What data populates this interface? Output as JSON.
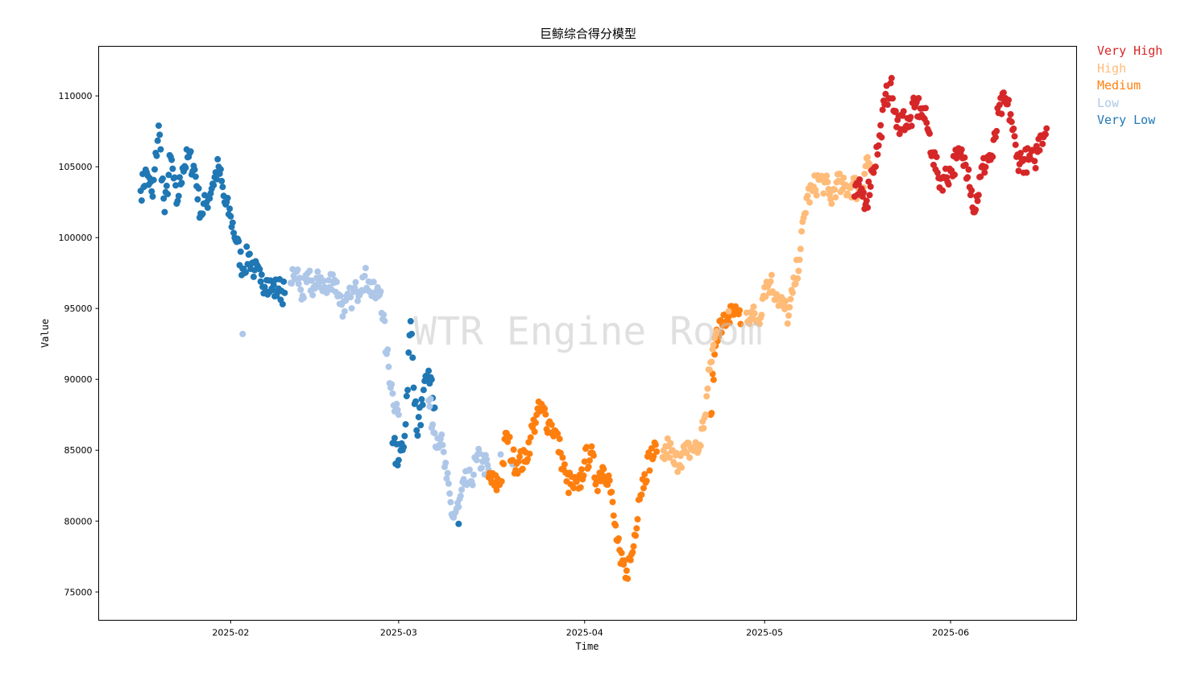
{
  "chart_data": {
    "type": "scatter",
    "title": "巨鲸综合得分模型",
    "xlabel": "Time",
    "ylabel": "Value",
    "watermark": "WTR Engine Room",
    "xlim": [
      "2025-01-10",
      "2025-06-22"
    ],
    "ylim": [
      73000,
      113500
    ],
    "x_ticks": [
      "2025-02",
      "2025-03",
      "2025-04",
      "2025-05",
      "2025-06"
    ],
    "y_ticks": [
      75000,
      80000,
      85000,
      90000,
      95000,
      100000,
      105000,
      110000
    ],
    "grid": false,
    "legend_position": "outside-top-right",
    "legend": [
      {
        "name": "Very High",
        "color": "#d62728"
      },
      {
        "name": "High",
        "color": "#ffbb78"
      },
      {
        "name": "Medium",
        "color": "#ff7f0e"
      },
      {
        "name": "Low",
        "color": "#aec7e8"
      },
      {
        "name": "Very Low",
        "color": "#1f77b4"
      }
    ],
    "series": [
      {
        "category": "Very Low",
        "color": "#1f77b4",
        "points": [
          [
            "2025-01-17",
            103300
          ],
          [
            "2025-01-18",
            104600
          ],
          [
            "2025-01-19",
            102900
          ],
          [
            "2025-01-20",
            107900
          ],
          [
            "2025-01-21",
            101800
          ],
          [
            "2025-01-22",
            105700
          ],
          [
            "2025-01-23",
            102400
          ],
          [
            "2025-01-24",
            104900
          ],
          [
            "2025-01-25",
            105700
          ],
          [
            "2025-01-26",
            104800
          ],
          [
            "2025-01-27",
            101700
          ],
          [
            "2025-01-28",
            102500
          ],
          [
            "2025-01-29",
            103800
          ],
          [
            "2025-01-30",
            105000
          ],
          [
            "2025-01-31",
            102500
          ],
          [
            "2025-02-01",
            101500
          ],
          [
            "2025-02-02",
            99700
          ],
          [
            "2025-02-03",
            97800
          ],
          [
            "2025-02-04",
            98800
          ],
          [
            "2025-02-05",
            97700
          ],
          [
            "2025-02-06",
            96900
          ],
          [
            "2025-02-07",
            97000
          ],
          [
            "2025-02-08",
            96300
          ],
          [
            "2025-02-09",
            96400
          ],
          [
            "2025-02-10",
            96100
          ],
          [
            "2025-02-28",
            85500
          ],
          [
            "2025-03-01",
            84300
          ],
          [
            "2025-03-02",
            86000
          ],
          [
            "2025-03-03",
            94100
          ],
          [
            "2025-03-04",
            86400
          ],
          [
            "2025-03-05",
            88200
          ],
          [
            "2025-03-06",
            90600
          ],
          [
            "2025-03-07",
            88000
          ],
          [
            "2025-03-11",
            79800
          ]
        ]
      },
      {
        "category": "Low",
        "color": "#aec7e8",
        "points": [
          [
            "2025-02-03",
            93200
          ],
          [
            "2025-02-11",
            96800
          ],
          [
            "2025-02-12",
            97600
          ],
          [
            "2025-02-13",
            95900
          ],
          [
            "2025-02-14",
            97000
          ],
          [
            "2025-02-15",
            96400
          ],
          [
            "2025-02-16",
            97200
          ],
          [
            "2025-02-17",
            96100
          ],
          [
            "2025-02-18",
            97400
          ],
          [
            "2025-02-19",
            96000
          ],
          [
            "2025-02-20",
            94800
          ],
          [
            "2025-02-21",
            95800
          ],
          [
            "2025-02-22",
            96200
          ],
          [
            "2025-02-23",
            97200
          ],
          [
            "2025-02-24",
            96900
          ],
          [
            "2025-02-25",
            95800
          ],
          [
            "2025-02-26",
            96200
          ],
          [
            "2025-02-27",
            91800
          ],
          [
            "2025-02-28",
            89000
          ],
          [
            "2025-03-01",
            87500
          ],
          [
            "2025-03-06",
            88500
          ],
          [
            "2025-03-07",
            86200
          ],
          [
            "2025-03-08",
            85800
          ],
          [
            "2025-03-09",
            83000
          ],
          [
            "2025-03-10",
            80300
          ],
          [
            "2025-03-11",
            81000
          ],
          [
            "2025-03-12",
            82600
          ],
          [
            "2025-03-13",
            82800
          ],
          [
            "2025-03-14",
            84300
          ],
          [
            "2025-03-15",
            84200
          ],
          [
            "2025-03-16",
            83600
          ],
          [
            "2025-03-18",
            84700
          ],
          [
            "2025-03-20",
            84000
          ]
        ]
      },
      {
        "category": "Medium",
        "color": "#ff7f0e",
        "points": [
          [
            "2025-03-16",
            83100
          ],
          [
            "2025-03-17",
            82500
          ],
          [
            "2025-03-18",
            82800
          ],
          [
            "2025-03-19",
            86200
          ],
          [
            "2025-03-20",
            84300
          ],
          [
            "2025-03-21",
            84200
          ],
          [
            "2025-03-22",
            84200
          ],
          [
            "2025-03-23",
            85900
          ],
          [
            "2025-03-24",
            87500
          ],
          [
            "2025-03-25",
            87800
          ],
          [
            "2025-03-26",
            86900
          ],
          [
            "2025-03-27",
            86400
          ],
          [
            "2025-03-28",
            84800
          ],
          [
            "2025-03-29",
            82800
          ],
          [
            "2025-03-30",
            82500
          ],
          [
            "2025-03-31",
            82300
          ],
          [
            "2025-04-01",
            84200
          ],
          [
            "2025-04-02",
            84800
          ],
          [
            "2025-04-03",
            82800
          ],
          [
            "2025-04-04",
            83800
          ],
          [
            "2025-04-05",
            83200
          ],
          [
            "2025-04-06",
            79800
          ],
          [
            "2025-04-07",
            77000
          ],
          [
            "2025-04-08",
            76500
          ],
          [
            "2025-04-09",
            77800
          ],
          [
            "2025-04-10",
            81500
          ],
          [
            "2025-04-11",
            83300
          ],
          [
            "2025-04-12",
            84600
          ],
          [
            "2025-04-13",
            84900
          ],
          [
            "2025-04-22",
            87500
          ],
          [
            "2025-04-23",
            93500
          ],
          [
            "2025-04-24",
            93800
          ],
          [
            "2025-04-25",
            94400
          ],
          [
            "2025-04-26",
            94600
          ],
          [
            "2025-04-27",
            93900
          ]
        ]
      },
      {
        "category": "High",
        "color": "#ffbb78",
        "points": [
          [
            "2025-04-14",
            84500
          ],
          [
            "2025-04-15",
            85300
          ],
          [
            "2025-04-16",
            84000
          ],
          [
            "2025-04-17",
            84600
          ],
          [
            "2025-04-18",
            84800
          ],
          [
            "2025-04-19",
            85200
          ],
          [
            "2025-04-20",
            85000
          ],
          [
            "2025-04-21",
            87300
          ],
          [
            "2025-04-22",
            91200
          ],
          [
            "2025-04-23",
            93400
          ],
          [
            "2025-04-25",
            94800
          ],
          [
            "2025-04-28",
            94700
          ],
          [
            "2025-04-29",
            94500
          ],
          [
            "2025-04-30",
            94200
          ],
          [
            "2025-05-01",
            96500
          ],
          [
            "2025-05-02",
            96900
          ],
          [
            "2025-05-03",
            96000
          ],
          [
            "2025-05-04",
            95200
          ],
          [
            "2025-05-05",
            94500
          ],
          [
            "2025-05-06",
            96700
          ],
          [
            "2025-05-07",
            99200
          ],
          [
            "2025-05-08",
            102800
          ],
          [
            "2025-05-09",
            103300
          ],
          [
            "2025-05-10",
            104100
          ],
          [
            "2025-05-11",
            103900
          ],
          [
            "2025-05-12",
            102700
          ],
          [
            "2025-05-13",
            103900
          ],
          [
            "2025-05-14",
            103400
          ],
          [
            "2025-05-15",
            103600
          ],
          [
            "2025-05-16",
            103700
          ],
          [
            "2025-05-17",
            103000
          ],
          [
            "2025-05-18",
            105600
          ],
          [
            "2025-05-19",
            104600
          ]
        ]
      },
      {
        "category": "Very High",
        "color": "#d62728",
        "points": [
          [
            "2025-05-16",
            102900
          ],
          [
            "2025-05-17",
            103300
          ],
          [
            "2025-05-18",
            102600
          ],
          [
            "2025-05-19",
            104800
          ],
          [
            "2025-05-20",
            106500
          ],
          [
            "2025-05-21",
            109400
          ],
          [
            "2025-05-22",
            110900
          ],
          [
            "2025-05-23",
            107800
          ],
          [
            "2025-05-24",
            108600
          ],
          [
            "2025-05-25",
            107800
          ],
          [
            "2025-05-26",
            109200
          ],
          [
            "2025-05-27",
            109100
          ],
          [
            "2025-05-28",
            108100
          ],
          [
            "2025-05-29",
            106000
          ],
          [
            "2025-05-30",
            104200
          ],
          [
            "2025-05-31",
            104200
          ],
          [
            "2025-06-01",
            104700
          ],
          [
            "2025-06-02",
            105600
          ],
          [
            "2025-06-03",
            105600
          ],
          [
            "2025-06-04",
            104800
          ],
          [
            "2025-06-05",
            101800
          ],
          [
            "2025-06-06",
            104300
          ],
          [
            "2025-06-07",
            105600
          ],
          [
            "2025-06-08",
            105700
          ],
          [
            "2025-06-09",
            108800
          ],
          [
            "2025-06-10",
            109600
          ],
          [
            "2025-06-11",
            108700
          ],
          [
            "2025-06-12",
            105700
          ],
          [
            "2025-06-13",
            105400
          ],
          [
            "2025-06-14",
            105500
          ],
          [
            "2025-06-15",
            105400
          ],
          [
            "2025-06-16",
            107200
          ],
          [
            "2025-06-17",
            107700
          ]
        ]
      }
    ]
  }
}
